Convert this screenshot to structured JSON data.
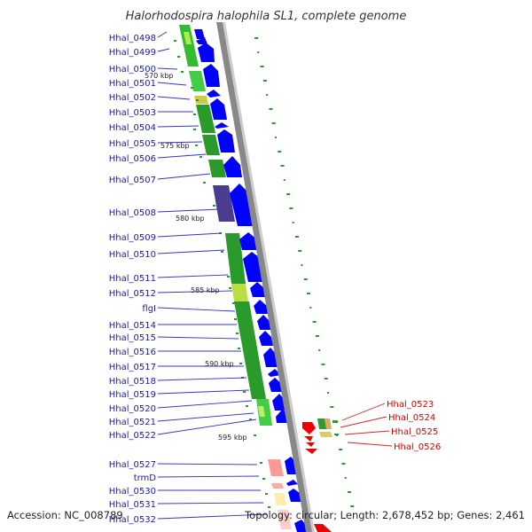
{
  "title": "Halorhodospira halophila SL1, complete genome",
  "accession_label": "Accession: NC_008789",
  "topology_label": "Topology: circular; Length: 2,678,452 bp; Genes: 2,461",
  "kbp_ticks": [
    "570 kbp",
    "575 kbp",
    "580 kbp",
    "585 kbp",
    "590 kbp",
    "595 kbp"
  ],
  "genes_left": [
    "Hhal_0498",
    "Hhal_0499",
    "Hhal_0500",
    "Hhal_0501",
    "Hhal_0502",
    "Hhal_0503",
    "Hhal_0504",
    "Hhal_0505",
    "Hhal_0506",
    "Hhal_0507",
    "Hhal_0508",
    "Hhal_0509",
    "Hhal_0510",
    "Hhal_0511",
    "Hhal_0512",
    "flgI",
    "Hhal_0514",
    "Hhal_0515",
    "Hhal_0516",
    "Hhal_0517",
    "Hhal_0518",
    "Hhal_0519",
    "Hhal_0520",
    "Hhal_0521",
    "Hhal_0522",
    "Hhal_0527",
    "trmD",
    "Hhal_0530",
    "Hhal_0531",
    "Hhal_0532"
  ],
  "genes_right": [
    "Hhal_0523",
    "Hhal_0524",
    "Hhal_0525",
    "Hhal_0526"
  ],
  "colors": {
    "forward_label": "#1a1aa8",
    "reverse_label": "#d40000",
    "forward_gene": "#0000ff",
    "reverse_gene": "#ee0000",
    "backbone": "#888888",
    "gc_green": "#2a9a2a",
    "gc_dark": "#4a3d8f"
  }
}
